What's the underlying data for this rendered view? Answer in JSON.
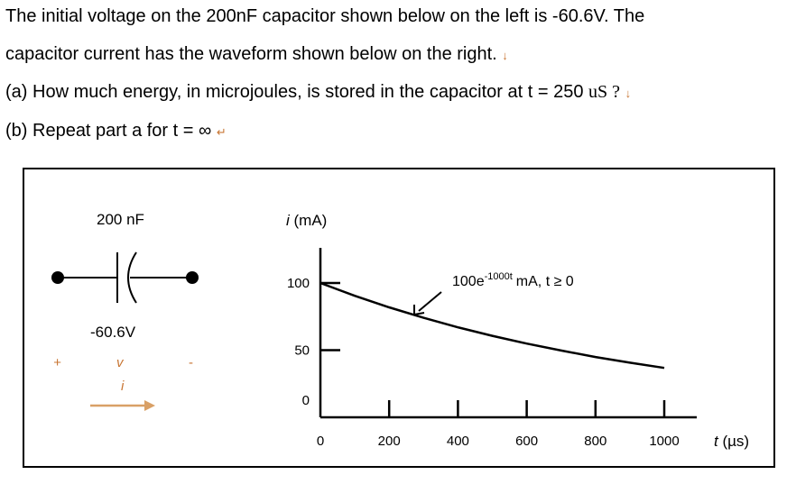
{
  "problem": {
    "line1": "The initial voltage on the 200nF capacitor shown below on the left is -60.6V. The",
    "line2": "capacitor current has the waveform shown below on the right.",
    "line3_main": "(a) How much energy, in microjoules, is stored in the capacitor at t = 250",
    "line3_unit": "uS ?",
    "line4": "(b) Repeat part a for t = ∞",
    "para_mark": "↵",
    "line_mark": "↓"
  },
  "circuit": {
    "cap_label": "200 nF",
    "voltage_label": "-60.6V",
    "plus": "+",
    "v": "v",
    "minus": "-",
    "i": "i",
    "arrow_color": "#d9a066"
  },
  "chart_data": {
    "type": "line",
    "ylabel_var": "i",
    "ylabel_unit": "(mA)",
    "xlabel_var": "t",
    "xlabel_unit": "(µs)",
    "yticks": [
      0,
      50,
      100
    ],
    "xticks": [
      0,
      200,
      400,
      600,
      800,
      1000
    ],
    "xlim": [
      0,
      1000
    ],
    "ylim": [
      0,
      100
    ],
    "formula_main": "100e",
    "formula_exp": "-1000t",
    "formula_tail": "mA, t ≥ 0",
    "series": [
      {
        "x": [
          0,
          100,
          200,
          300,
          400,
          500,
          600,
          700,
          800,
          900,
          1000
        ],
        "y": [
          100,
          90.5,
          81.9,
          74.1,
          67.0,
          60.7,
          54.9,
          49.7,
          44.9,
          40.7,
          36.8
        ]
      }
    ]
  }
}
